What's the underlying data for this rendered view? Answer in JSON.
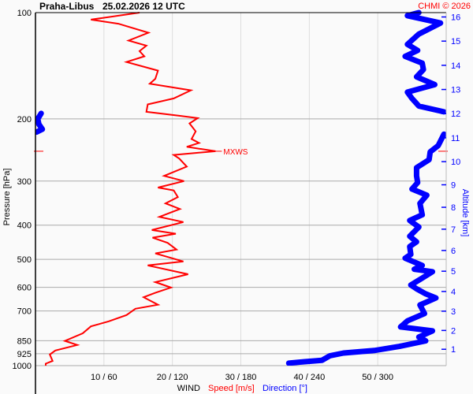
{
  "chart_data": {
    "type": "line",
    "title": "Praha-Libus",
    "subtitle": "25.02.2026 12 UTC",
    "credit": "CHMI © 2026",
    "xlabel": {
      "main": "WIND",
      "speed": "Speed [m/s]",
      "direction": "Direction [°]"
    },
    "ylabel": "Pressure [hPa]",
    "y2label": "Altitude [km]",
    "xlim_speed": [
      0,
      60
    ],
    "xlim_direction": [
      0,
      360
    ],
    "ylim_pressure": [
      1000,
      100
    ],
    "y_scale": "log",
    "x_ticks": [
      "10 / 60",
      "20 / 120",
      "30 / 180",
      "40 / 240",
      "50 / 300"
    ],
    "x_tick_speeds": [
      10,
      20,
      30,
      40,
      50
    ],
    "y_ticks": [
      100,
      200,
      300,
      400,
      500,
      600,
      700,
      850,
      925,
      1000
    ],
    "altitude_ticks_km": [
      1,
      2,
      3,
      4,
      5,
      6,
      7,
      8,
      9,
      10,
      11,
      12,
      13,
      14,
      15,
      16
    ],
    "grid": true,
    "annotations": [
      {
        "label": "MXWS",
        "pressure": 247,
        "speed": 26.3
      }
    ],
    "colors": {
      "speed": "#ff0000",
      "direction": "#0000ff",
      "grid": "#aaaaaa",
      "vgrid": "#dddddd",
      "credit": "#ff0000"
    },
    "series": [
      {
        "name": "Speed [m/s]",
        "points": [
          [
            1000,
            1.5
          ],
          [
            987,
            1.5
          ],
          [
            970,
            2.5
          ],
          [
            930,
            2.1
          ],
          [
            906,
            2.9
          ],
          [
            874,
            6.1
          ],
          [
            851,
            4.3
          ],
          [
            810,
            6.9
          ],
          [
            774,
            8.1
          ],
          [
            749,
            10.7
          ],
          [
            719,
            13.3
          ],
          [
            690,
            14.6
          ],
          [
            672,
            17.9
          ],
          [
            640,
            15.8
          ],
          [
            622,
            17.5
          ],
          [
            601,
            19.8
          ],
          [
            580,
            17.5
          ],
          [
            551,
            22.3
          ],
          [
            520,
            16.4
          ],
          [
            507,
            21.6
          ],
          [
            481,
            17.5
          ],
          [
            469,
            20.6
          ],
          [
            449,
            19.3
          ],
          [
            434,
            17.1
          ],
          [
            423,
            20.5
          ],
          [
            413,
            17.0
          ],
          [
            392,
            21.6
          ],
          [
            379,
            18.1
          ],
          [
            360,
            21.1
          ],
          [
            347,
            19.0
          ],
          [
            333,
            20.8
          ],
          [
            319,
            20.2
          ],
          [
            313,
            17.9
          ],
          [
            300,
            21.7
          ],
          [
            290,
            18.8
          ],
          [
            273,
            22.1
          ],
          [
            259,
            21.0
          ],
          [
            253,
            20.2
          ],
          [
            247,
            26.3
          ],
          [
            240,
            22.1
          ],
          [
            234,
            23.9
          ],
          [
            228,
            22.8
          ],
          [
            217,
            23.4
          ],
          [
            206,
            22.5
          ],
          [
            199,
            23.7
          ],
          [
            196,
            21.0
          ],
          [
            191,
            16.2
          ],
          [
            182,
            16.4
          ],
          [
            175,
            20.2
          ],
          [
            166,
            22.7
          ],
          [
            159,
            16.7
          ],
          [
            154,
            17.5
          ],
          [
            146,
            17.9
          ],
          [
            138,
            13.3
          ],
          [
            133,
            15.9
          ],
          [
            128.6,
            15.2
          ],
          [
            124,
            16.2
          ],
          [
            120,
            13.6
          ],
          [
            114,
            16.5
          ],
          [
            107.5,
            12.1
          ],
          [
            104.7,
            8.1
          ],
          [
            100,
            15.2
          ]
        ]
      },
      {
        "name": "Direction [°]",
        "segments": [
          [
            [
              984,
              222
            ],
            [
              975,
              235
            ],
            [
              966,
              251
            ],
            [
              938,
              258
            ],
            [
              921,
              270
            ],
            [
              906,
              297
            ],
            [
              882,
              319
            ],
            [
              851,
              342
            ],
            [
              830,
              336
            ],
            [
              797,
              348
            ],
            [
              777,
              320
            ],
            [
              747,
              326
            ],
            [
              712,
              341
            ],
            [
              673,
              337
            ],
            [
              643,
              351
            ],
            [
              626,
              342
            ],
            [
              606,
              334
            ],
            [
              591,
              329
            ],
            [
              565,
              339
            ],
            [
              542,
              348
            ],
            [
              533,
              332
            ],
            [
              520,
              339
            ],
            [
              496,
              324
            ],
            [
              484,
              329
            ],
            [
              460,
              328
            ],
            [
              446,
              334
            ],
            [
              430,
              328
            ],
            [
              405,
              336
            ],
            [
              388,
              328
            ],
            [
              374,
              339
            ],
            [
              347,
              337
            ],
            [
              329,
              343
            ],
            [
              316,
              330
            ],
            [
              303,
              335
            ],
            [
              290,
              334
            ],
            [
              275,
              334
            ],
            [
              261,
              345
            ],
            [
              248,
              346
            ],
            [
              238,
              353
            ],
            [
              221,
              358
            ]
          ],
          [
            [
              218,
              1
            ],
            [
              214,
              6
            ],
            [
              207,
              3
            ],
            [
              200,
              2
            ],
            [
              193,
              5
            ]
          ],
          [
            [
              191,
              358
            ],
            [
              184,
              336
            ],
            [
              175,
              330
            ],
            [
              168,
              326
            ],
            [
              160,
              350
            ],
            [
              152,
              334
            ],
            [
              145,
              340
            ],
            [
              139,
              339
            ],
            [
              133,
              324
            ],
            [
              128,
              335
            ],
            [
              123,
              326
            ],
            [
              115,
              336
            ],
            [
              107,
              355
            ],
            [
              102,
              326
            ],
            [
              100,
              336
            ]
          ]
        ]
      }
    ]
  }
}
